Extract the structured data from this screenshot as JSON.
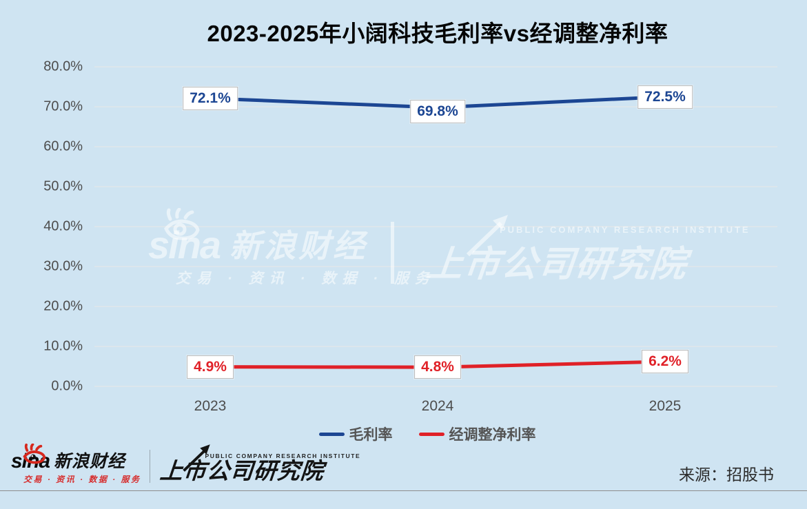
{
  "title": "2023-2025年小阔科技毛利率vs经调整净利率",
  "chart_data": {
    "type": "line",
    "categories": [
      "2023",
      "2024",
      "2025"
    ],
    "series": [
      {
        "name": "毛利率",
        "values": [
          72.1,
          69.8,
          72.5
        ],
        "labels": [
          "72.1%",
          "69.8%",
          "72.5%"
        ],
        "color": "#1c4693",
        "label_dy": [
          0,
          6,
          0
        ]
      },
      {
        "name": "经调整净利率",
        "values": [
          4.9,
          4.8,
          6.2
        ],
        "labels": [
          "4.9%",
          "4.8%",
          "6.2%"
        ],
        "color": "#e02128",
        "label_dy": [
          0,
          0,
          0
        ]
      }
    ],
    "title": "2023-2025年小阔科技毛利率vs经调整净利率",
    "xlabel": "",
    "ylabel": "",
    "ylim": [
      0,
      80
    ],
    "ytick_step": 10,
    "ytick_labels": [
      "80.0%",
      "70.0%",
      "60.0%",
      "50.0%",
      "40.0%",
      "30.0%",
      "20.0%",
      "10.0%",
      "0.0%"
    ],
    "grid": true,
    "legend_position": "bottom"
  },
  "legend": {
    "items": [
      {
        "label": "毛利率",
        "color": "#1c4693"
      },
      {
        "label": "经调整净利率",
        "color": "#e02128"
      }
    ]
  },
  "watermark": {
    "sina_word": "sina",
    "brand": "新浪财经",
    "tagline": "交易 · 资讯 · 数据 · 服务",
    "institute_en": "PUBLIC COMPANY RESEARCH INSTITUTE",
    "institute_cn": "上市公司研究院"
  },
  "footer": {
    "sina_word": "sina",
    "brand": "新浪财经",
    "tagline": "交易 · 资讯 · 数据 · 服务",
    "institute_en": "PUBLIC COMPANY RESEARCH INSTITUTE",
    "institute_cn": "上市公司研究院",
    "source": "来源：招股书"
  },
  "colors": {
    "background": "#cfe4f2",
    "gridline": "#e4e7e9",
    "axis_text": "#4d4d4d",
    "gross_margin_line": "#1c4693",
    "adjusted_net_margin_line": "#e02128",
    "label_box_border": "#b9b9b9",
    "footer_rule": "#8c8c8c",
    "footer_accent_red": "#d62e2e"
  }
}
